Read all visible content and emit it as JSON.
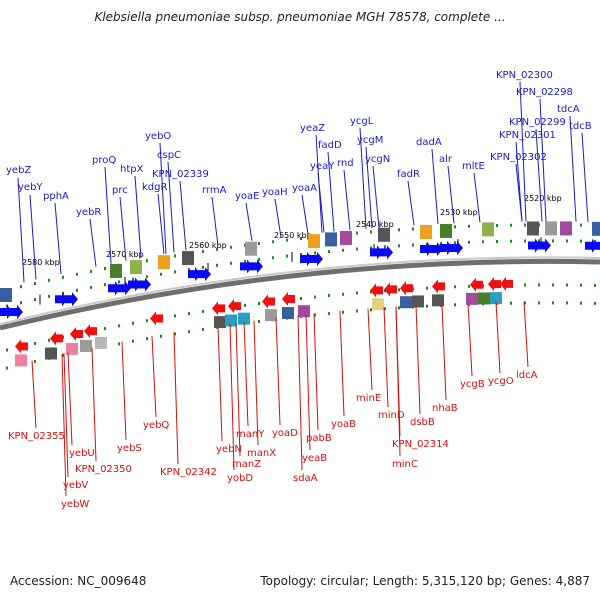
{
  "title": "Klebsiella pneumoniae subsp. pneumoniae MGH 78578, complete ...",
  "accession": "Accession: NC_009648",
  "topology": "Topology: circular; Length: 5,315,120 bp; Genes: 4,887",
  "colors": {
    "forward_label": "#1b1bc8",
    "reverse_label": "#d01010",
    "forward_arrow": "#0a0af0",
    "reverse_arrow": "#f01010",
    "ring_dark": "#707070",
    "ring_light": "#b8b8b8",
    "tick": "#1a8a1a"
  },
  "ticks": [
    "2580 kbp",
    "2570 kbp",
    "2560 kbp",
    "2550 kbp",
    "2540 kbp",
    "2530 kbp",
    "2520 kbp"
  ],
  "forward_genes": [
    "yebZ",
    "yebY",
    "pphA",
    "yebR",
    "proQ",
    "prc",
    "htpX",
    "yebO",
    "cspC",
    "KPN_02339",
    "kdgR",
    "rrmA",
    "yoaE",
    "yoaH",
    "yoaA",
    "yeaZ",
    "fadD",
    "yeaY",
    "rnd",
    "ycgL",
    "ycgM",
    "ycgN",
    "fadR",
    "dadA",
    "alr",
    "mltE",
    "KPN_02300",
    "KPN_02298",
    "KPN_02299",
    "KPN_02301",
    "KPN_02302",
    "tdcA",
    "tdcB"
  ],
  "reverse_genes": [
    "KPN_02355",
    "yebU",
    "yebV",
    "yebW",
    "KPN_02350",
    "yebS",
    "yebQ",
    "KPN_02342",
    "yebN",
    "manZ",
    "manY",
    "manX",
    "yobD",
    "yoaD",
    "pabB",
    "sdaA",
    "yeaB",
    "yoaB",
    "minE",
    "minD",
    "minC",
    "KPN_02314",
    "dsbB",
    "nhaB",
    "ycgB",
    "ycgO",
    "ldcA"
  ]
}
